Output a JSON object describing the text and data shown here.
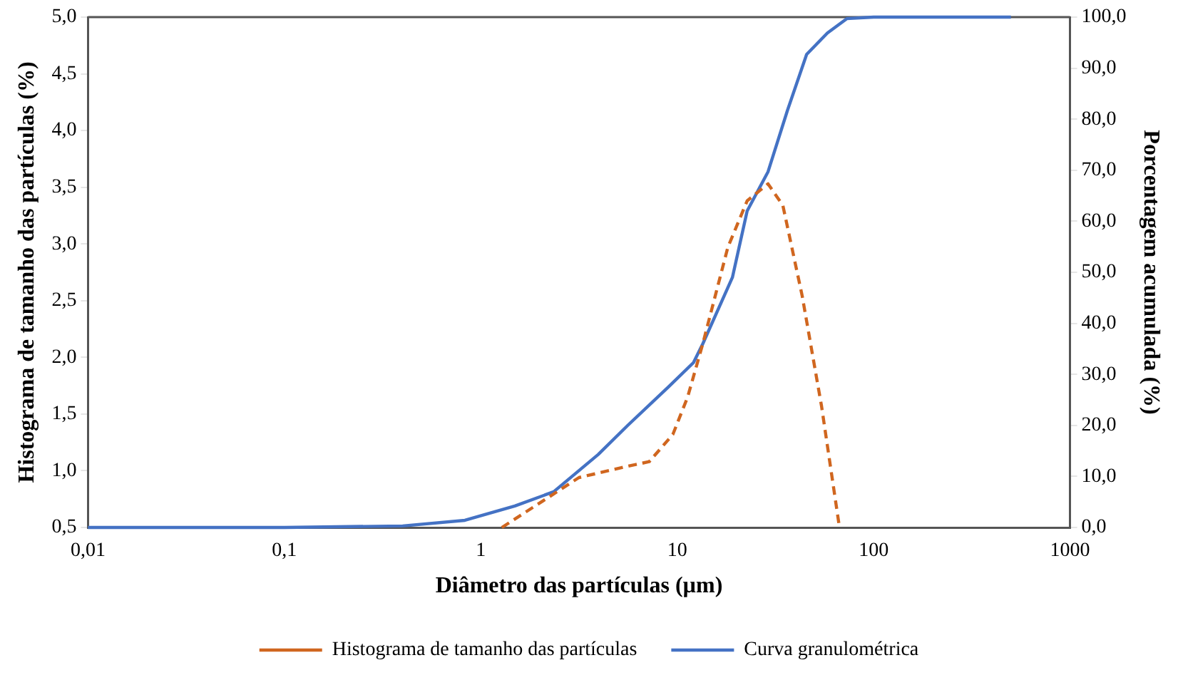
{
  "chart_data": {
    "type": "line",
    "xlabel": "Diâmetro das partículas (µm)",
    "ylabel": "Histograma de tamanho das partículas (%)",
    "y2label": "Porcentagem acumulada (%)",
    "log": "x",
    "grid": false,
    "legend": "bottom",
    "marker": "none",
    "xlim": [
      0.01,
      1000
    ],
    "xticks": [
      {
        "value": 0.01,
        "label": "0,01"
      },
      {
        "value": 0.1,
        "label": "0,1"
      },
      1,
      10,
      100,
      1000
    ],
    "ylim": [
      0.5,
      5.0
    ],
    "yticks": [
      {
        "value": 0.5,
        "label": "0,5"
      },
      {
        "value": 1.0,
        "label": "1,0"
      },
      {
        "value": 1.5,
        "label": "1,5"
      },
      {
        "value": 2.0,
        "label": "2,0"
      },
      {
        "value": 2.5,
        "label": "2,5"
      },
      {
        "value": 3.0,
        "label": "3,0"
      },
      {
        "value": 3.5,
        "label": "3,5"
      },
      {
        "value": 4.0,
        "label": "4,0"
      },
      {
        "value": 4.5,
        "label": "4,5"
      },
      {
        "value": 5.0,
        "label": "5,0"
      }
    ],
    "y2lim": [
      0,
      100
    ],
    "y2ticks": [
      {
        "value": 0,
        "label": "0,0"
      },
      {
        "value": 10,
        "label": "10,0"
      },
      {
        "value": 20,
        "label": "20,0"
      },
      {
        "value": 30,
        "label": "30,0"
      },
      {
        "value": 40,
        "label": "40,0"
      },
      {
        "value": 50,
        "label": "50,0"
      },
      {
        "value": 60,
        "label": "60,0"
      },
      {
        "value": 70,
        "label": "70,0"
      },
      {
        "value": 80,
        "label": "80,0"
      },
      {
        "value": 90,
        "label": "90,0"
      },
      {
        "value": 100,
        "label": "100,0"
      }
    ],
    "series": [
      {
        "name": "Histograma de tamanho das partículas",
        "color": "#d0661f",
        "line_style": "dashed",
        "x": [
          1.28,
          2.23,
          3.16,
          5.6,
          7.2,
          9.5,
          11.3,
          13.5,
          18.1,
          22.7,
          29,
          34.5,
          43.3,
          54.3,
          67
        ],
        "values": [
          0.5,
          0.77,
          0.94,
          1.04,
          1.08,
          1.32,
          1.65,
          2.12,
          2.97,
          3.38,
          3.53,
          3.34,
          2.54,
          1.57,
          0.5
        ]
      },
      {
        "name": "Curva granulométrica",
        "color": "#4472c4",
        "line_style": "solid",
        "axis": "y2",
        "x": [
          0.01,
          0.1,
          0.4,
          0.83,
          1.49,
          2.35,
          3.96,
          5.6,
          9.0,
          12.1,
          13.5,
          19.1,
          22.7,
          29,
          36.4,
          45.6,
          58.2,
          73,
          100,
          500
        ],
        "values": [
          0,
          0,
          0.3,
          1.4,
          4.2,
          7.0,
          14.3,
          20,
          27.5,
          32.3,
          36,
          49,
          62,
          69.7,
          81.7,
          92.7,
          96.9,
          99.7,
          100,
          100
        ]
      }
    ]
  }
}
